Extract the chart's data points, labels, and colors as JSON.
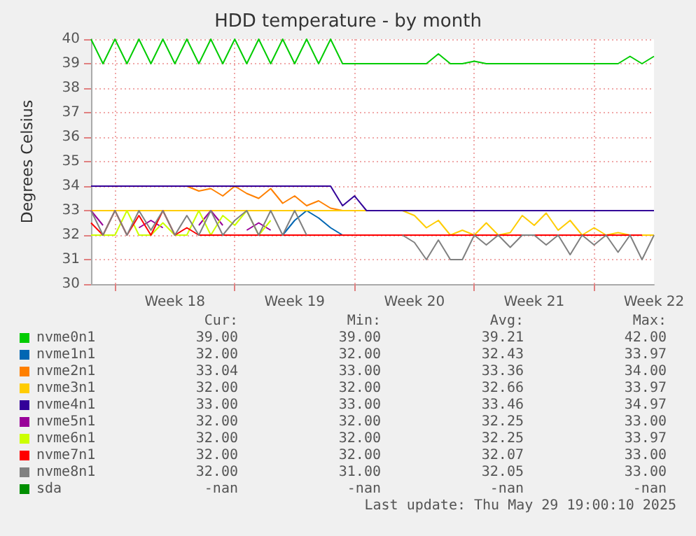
{
  "chart_data": {
    "type": "line",
    "title": "HDD temperature - by month",
    "ylabel": "Degrees Celsius",
    "categories": [
      null,
      null,
      null,
      null,
      null,
      null,
      null,
      "Week 18",
      null,
      null,
      null,
      null,
      null,
      null,
      null,
      null,
      null,
      "Week 19",
      null,
      null,
      null,
      null,
      null,
      null,
      null,
      null,
      null,
      "Week 20",
      null,
      null,
      null,
      null,
      null,
      null,
      null,
      null,
      null,
      "Week 21",
      null,
      null,
      null,
      null,
      null,
      null,
      null,
      null,
      null,
      "Week 22"
    ],
    "ylim": [
      30,
      40
    ],
    "yticks": [
      30,
      31,
      32,
      33,
      34,
      35,
      36,
      37,
      38,
      39,
      40
    ],
    "grid": true,
    "legend": "bottom",
    "series": [
      {
        "name": "nvme0n1",
        "color": "#00cc00",
        "values": [
          40,
          39,
          40,
          39,
          40,
          39,
          40,
          39,
          40,
          39,
          40,
          39,
          40,
          39,
          40,
          39,
          40,
          39,
          40,
          39,
          40,
          39,
          39,
          39,
          39,
          39,
          39,
          39,
          39,
          39.4,
          39,
          39,
          39.1,
          39,
          39,
          39,
          39,
          39,
          39,
          39,
          39,
          39,
          39,
          39,
          39,
          39.3,
          39,
          39.3
        ]
      },
      {
        "name": "nvme1n1",
        "color": "#0066b3",
        "values": [
          null,
          null,
          null,
          null,
          null,
          null,
          null,
          null,
          null,
          null,
          null,
          null,
          null,
          null,
          null,
          null,
          32,
          32.6,
          33,
          32.7,
          32.3,
          32,
          null,
          null,
          null,
          null,
          null,
          null,
          null,
          null,
          null,
          null,
          null,
          null,
          null,
          null,
          null,
          null,
          null,
          null,
          null,
          null,
          null,
          null,
          null,
          null,
          null,
          null
        ]
      },
      {
        "name": "nvme2n1",
        "color": "#ff8000",
        "values": [
          null,
          null,
          null,
          null,
          null,
          null,
          null,
          null,
          34,
          33.8,
          33.9,
          33.6,
          34,
          33.7,
          33.5,
          33.9,
          33.3,
          33.6,
          33.2,
          33.4,
          33.1,
          33,
          null,
          null,
          null,
          null,
          null,
          null,
          null,
          null,
          null,
          null,
          null,
          null,
          null,
          null,
          null,
          null,
          null,
          null,
          null,
          null,
          null,
          null,
          null,
          null,
          null,
          null
        ]
      },
      {
        "name": "nvme3n1",
        "color": "#ffcc00",
        "values": [
          33,
          33,
          33,
          33,
          33,
          33,
          33,
          33,
          33,
          33,
          33,
          33,
          33,
          33,
          33,
          33,
          33,
          33,
          33,
          33,
          33,
          33,
          33,
          33,
          33,
          33,
          33,
          32.8,
          32.3,
          32.6,
          32,
          32.2,
          32,
          32.5,
          32,
          32.1,
          32.8,
          32.4,
          32.9,
          32.2,
          32.6,
          32,
          32.3,
          32,
          32.1,
          32,
          32,
          32
        ]
      },
      {
        "name": "nvme4n1",
        "color": "#330099",
        "values": [
          34,
          34,
          34,
          34,
          34,
          34,
          34,
          34,
          34,
          34,
          34,
          34,
          34,
          34,
          34,
          34,
          34,
          34,
          34,
          34,
          34,
          33.2,
          33.6,
          33,
          33,
          33,
          33,
          33,
          33,
          33,
          33,
          33,
          33,
          33,
          33,
          33,
          33,
          33,
          33,
          33,
          33,
          33,
          33,
          33,
          33,
          33,
          33,
          33
        ]
      },
      {
        "name": "nvme5n1",
        "color": "#990099",
        "values": [
          33,
          32.4,
          null,
          null,
          32.3,
          32.6,
          32.3,
          null,
          null,
          32.4,
          33,
          32.4,
          null,
          32.2,
          32.5,
          32.2,
          null,
          null,
          null,
          null,
          null,
          null,
          null,
          null,
          null,
          null,
          null,
          null,
          null,
          null,
          null,
          null,
          null,
          null,
          null,
          null,
          null,
          null,
          null,
          null,
          null,
          null,
          null,
          null,
          null,
          null,
          null,
          null
        ]
      },
      {
        "name": "nvme6n1",
        "color": "#ccff00",
        "values": [
          32,
          32,
          32,
          33,
          32,
          32,
          32.5,
          32,
          32,
          33,
          32,
          32.8,
          32.4,
          33,
          32,
          32.6,
          null,
          null,
          null,
          null,
          null,
          null,
          null,
          null,
          null,
          null,
          null,
          null,
          null,
          null,
          null,
          null,
          null,
          null,
          null,
          null,
          null,
          null,
          null,
          null,
          null,
          null,
          null,
          null,
          null,
          null,
          null,
          null
        ]
      },
      {
        "name": "nvme7n1",
        "color": "#ff0000",
        "values": [
          32.5,
          32,
          33,
          32,
          32.8,
          32,
          33,
          32,
          32.3,
          32,
          32,
          32,
          32,
          32,
          32,
          32,
          32,
          32,
          32,
          32,
          32,
          32,
          32,
          32,
          32,
          32,
          32,
          32,
          32,
          32,
          32,
          32,
          32,
          32,
          32,
          32,
          32,
          32,
          32,
          32,
          32,
          32,
          32,
          32,
          32,
          32,
          32,
          null
        ]
      },
      {
        "name": "nvme8n1",
        "color": "#808080",
        "values": [
          33,
          32,
          33,
          32,
          33,
          32.2,
          33,
          32,
          32.8,
          32,
          33,
          32,
          32.6,
          33,
          32,
          33,
          32,
          33,
          32,
          null,
          null,
          null,
          null,
          null,
          null,
          null,
          32,
          31.7,
          31,
          31.8,
          31,
          31,
          32,
          31.6,
          32,
          31.5,
          32,
          32,
          31.6,
          32,
          31.2,
          32,
          31.6,
          32,
          31.3,
          32,
          31,
          32
        ]
      },
      {
        "name": "sda",
        "color": "#008f00",
        "values": [
          null,
          null,
          null,
          null,
          null,
          null,
          null,
          null,
          null,
          null,
          null,
          null,
          null,
          null,
          null,
          null,
          null,
          null,
          null,
          null,
          null,
          null,
          null,
          null,
          null,
          null,
          null,
          null,
          null,
          null,
          null,
          null,
          null,
          null,
          null,
          null,
          null,
          null,
          null,
          null,
          null,
          null,
          null,
          null,
          null,
          null,
          null,
          null
        ]
      }
    ],
    "annotations": [
      "Cur:",
      "Min:",
      "Avg:",
      "Max:",
      "39.00",
      "39.00",
      "39.21",
      "42.00",
      "32.00",
      "32.00",
      "32.43",
      "33.97",
      "33.04",
      "33.00",
      "33.36",
      "34.00",
      "32.00",
      "32.00",
      "32.66",
      "33.97",
      "33.00",
      "33.00",
      "33.46",
      "34.97",
      "32.00",
      "32.00",
      "32.25",
      "33.00",
      "32.00",
      "32.00",
      "32.25",
      "33.97",
      "32.00",
      "32.00",
      "32.07",
      "33.00",
      "32.00",
      "31.00",
      "32.05",
      "33.00",
      "-nan",
      "-nan",
      "-nan",
      "-nan",
      "Last update: Thu May 29 19:00:10 2025"
    ]
  }
}
